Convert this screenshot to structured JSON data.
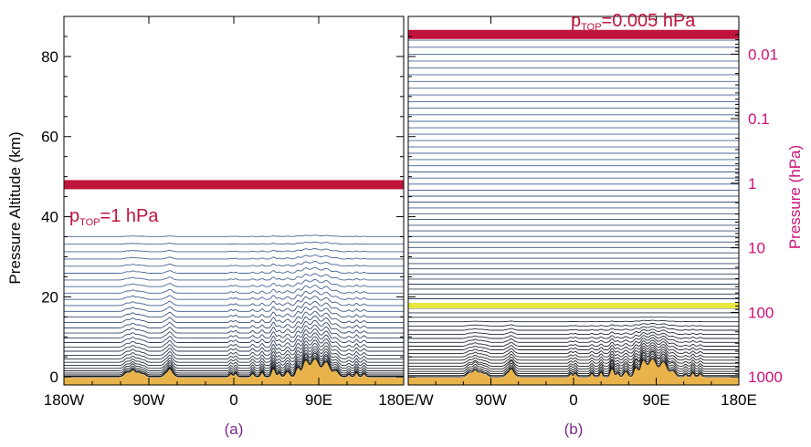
{
  "chart_data": [
    {
      "type": "line",
      "panel_label": "(a)",
      "x_ticks": [
        "180W",
        "90W",
        "0",
        "90E",
        "180E/W"
      ],
      "xlim": [
        -180,
        180
      ],
      "ylabel": "Pressure Altitude (km)",
      "ylim": [
        -2,
        90
      ],
      "y_ticks": [
        0,
        20,
        40,
        60,
        80
      ],
      "model_top_km": 48,
      "model_top_annotation": {
        "prefix": "p",
        "subscript": "TOP",
        "suffix": "=1 hPa"
      },
      "level_count": 30,
      "top_level_km": 35,
      "terrain_color": "#e8b34a",
      "top_band_color": "#c0143c"
    },
    {
      "type": "line",
      "panel_label": "(b)",
      "x_ticks": [
        "90W",
        "0",
        "90E",
        "180E"
      ],
      "xlim": [
        -180,
        180
      ],
      "y2label": "Pressure (hPa)",
      "y2_scale": "log",
      "y2_ticks": [
        "0.01",
        "0.1",
        "1",
        "10",
        "100",
        "1000"
      ],
      "ylim": [
        -2,
        90
      ],
      "model_top_km": 85.5,
      "model_top_annotation": {
        "prefix": "p",
        "subscript": "TOP",
        "suffix": "=0.005 hPa"
      },
      "level_count": 66,
      "highlight_level_km": 17.8,
      "highlight_color": "#e8e840",
      "terrain_color": "#e8b34a",
      "top_band_color": "#c0143c",
      "label_color": "#cc1177"
    }
  ]
}
